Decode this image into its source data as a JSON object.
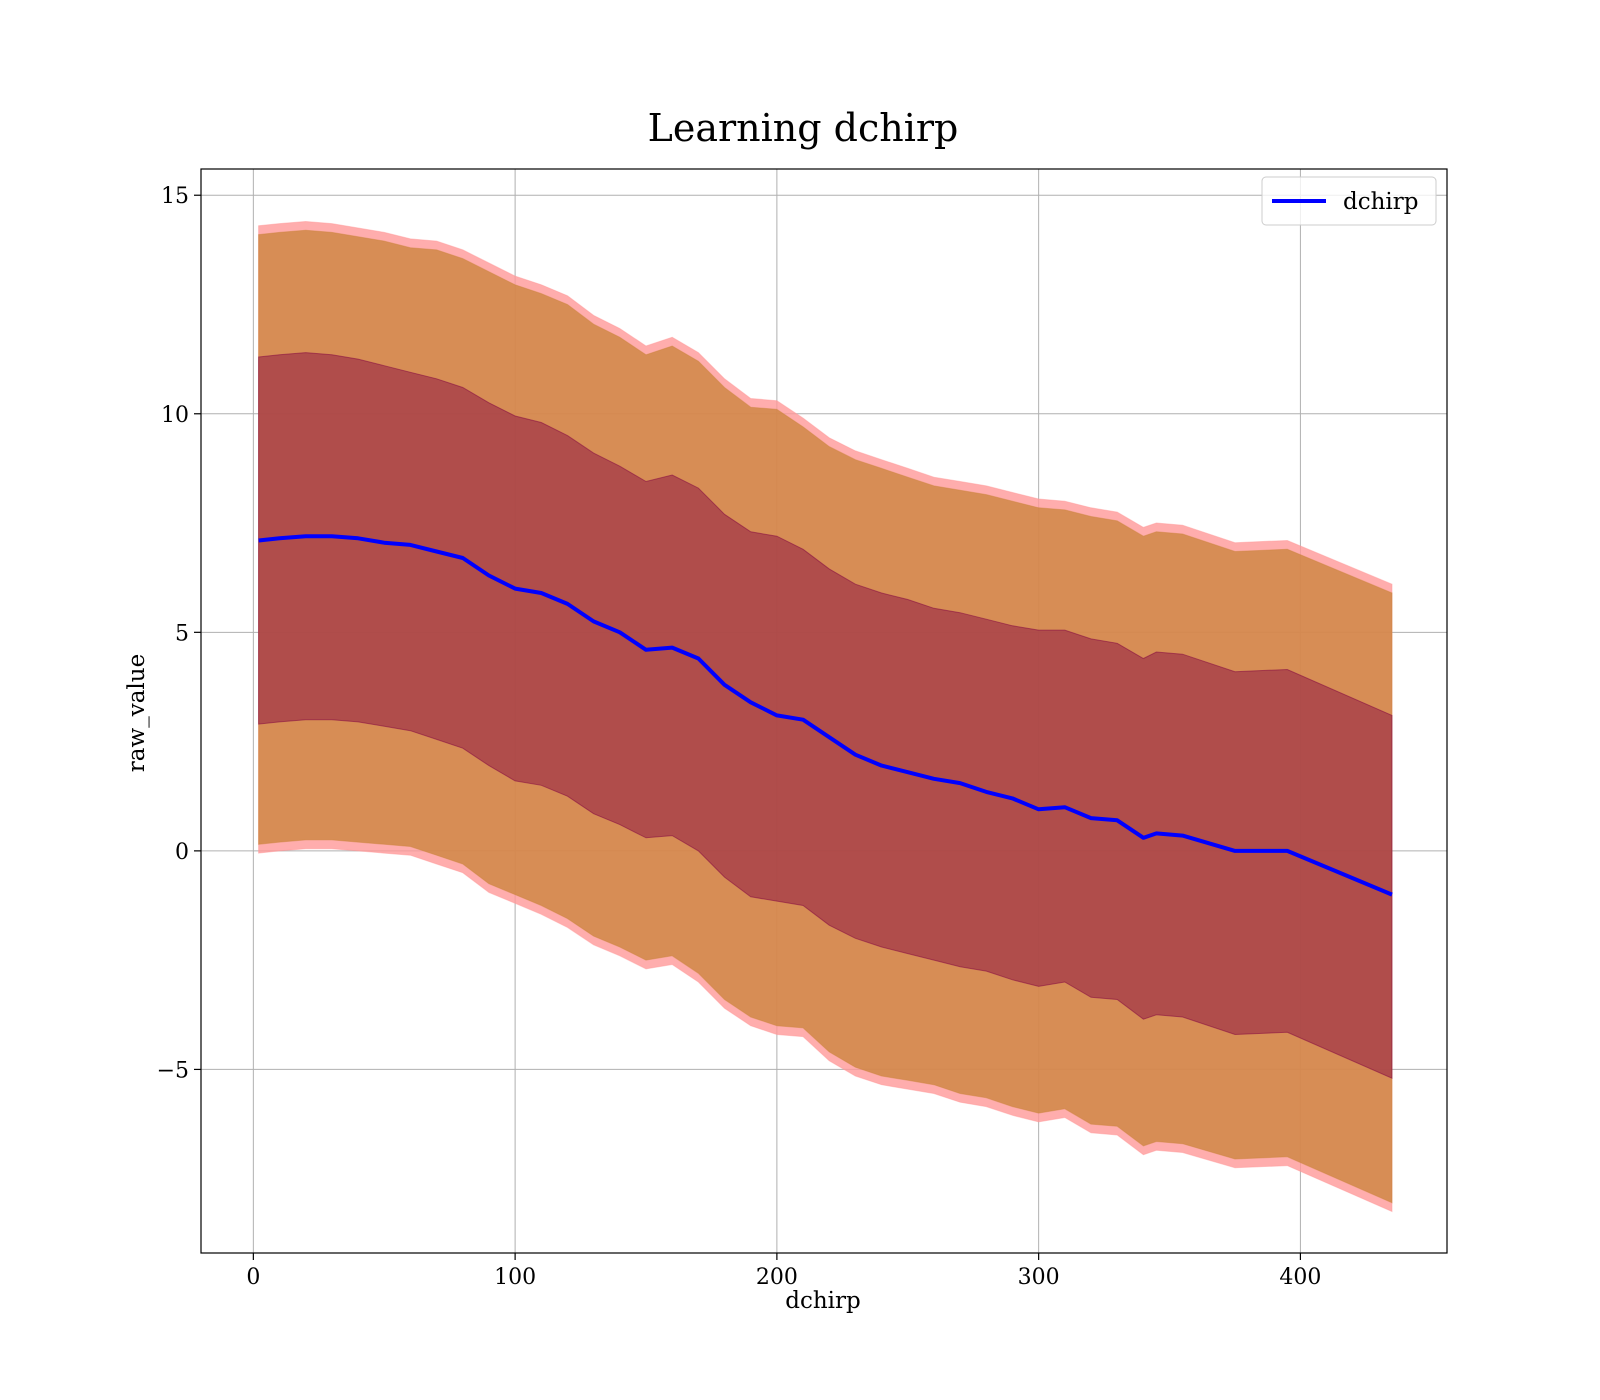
{
  "chart_data": {
    "type": "line",
    "title": "Learning dchirp",
    "xlabel": "dchirp",
    "ylabel": "raw_value",
    "xlim": [
      -20,
      456
    ],
    "ylim": [
      -9.2,
      15.6
    ],
    "xticks": [
      0,
      100,
      200,
      300,
      400
    ],
    "yticks": [
      -5,
      0,
      5,
      10,
      15
    ],
    "xtick_labels": [
      "0",
      "100",
      "200",
      "300",
      "400"
    ],
    "ytick_labels": [
      "−5",
      "0",
      "5",
      "10",
      "15"
    ],
    "grid": true,
    "legend_position": "upper-right",
    "x": [
      2,
      10,
      20,
      30,
      40,
      50,
      60,
      70,
      80,
      90,
      100,
      110,
      120,
      130,
      140,
      150,
      160,
      170,
      180,
      190,
      200,
      210,
      220,
      230,
      240,
      250,
      260,
      270,
      280,
      290,
      300,
      310,
      320,
      330,
      340,
      345,
      355,
      375,
      395,
      435
    ],
    "series": [
      {
        "name": "dchirp",
        "color": "#0000ff",
        "values": [
          7.1,
          7.15,
          7.2,
          7.2,
          7.15,
          7.05,
          7.0,
          6.85,
          6.7,
          6.3,
          6.0,
          5.9,
          5.65,
          5.25,
          5.0,
          4.6,
          4.65,
          4.4,
          3.8,
          3.4,
          3.1,
          3.0,
          2.6,
          2.2,
          1.95,
          1.8,
          1.65,
          1.55,
          1.35,
          1.2,
          0.95,
          1.0,
          0.75,
          0.7,
          0.3,
          0.4,
          0.35,
          0.0,
          0.0,
          -1.0
        ]
      }
    ],
    "bands": [
      {
        "level": "outer",
        "color": "#ff9999",
        "upper": [
          14.3,
          14.35,
          14.4,
          14.35,
          14.25,
          14.15,
          14.0,
          13.95,
          13.75,
          13.45,
          13.15,
          12.95,
          12.7,
          12.25,
          11.95,
          11.55,
          11.75,
          11.4,
          10.8,
          10.35,
          10.3,
          9.9,
          9.45,
          9.15,
          8.95,
          8.75,
          8.55,
          8.45,
          8.35,
          8.2,
          8.05,
          8.0,
          7.85,
          7.75,
          7.4,
          7.5,
          7.45,
          7.05,
          7.1,
          6.1
        ],
        "lower": [
          -0.05,
          0.0,
          0.05,
          0.05,
          0.0,
          -0.05,
          -0.1,
          -0.3,
          -0.5,
          -0.95,
          -1.2,
          -1.45,
          -1.75,
          -2.15,
          -2.4,
          -2.7,
          -2.6,
          -3.0,
          -3.6,
          -4.0,
          -4.2,
          -4.25,
          -4.8,
          -5.15,
          -5.35,
          -5.45,
          -5.55,
          -5.75,
          -5.85,
          -6.05,
          -6.2,
          -6.1,
          -6.45,
          -6.5,
          -6.95,
          -6.85,
          -6.9,
          -7.25,
          -7.2,
          -8.25
        ]
      },
      {
        "level": "2-sigma",
        "color": "#cd853f",
        "upper": [
          14.1,
          14.15,
          14.2,
          14.15,
          14.05,
          13.95,
          13.8,
          13.75,
          13.55,
          13.25,
          12.95,
          12.75,
          12.5,
          12.05,
          11.75,
          11.35,
          11.55,
          11.2,
          10.6,
          10.15,
          10.1,
          9.7,
          9.25,
          8.95,
          8.75,
          8.55,
          8.35,
          8.25,
          8.15,
          8.0,
          7.85,
          7.8,
          7.65,
          7.55,
          7.2,
          7.3,
          7.25,
          6.85,
          6.9,
          5.9
        ],
        "lower": [
          0.15,
          0.2,
          0.25,
          0.25,
          0.2,
          0.15,
          0.1,
          -0.1,
          -0.3,
          -0.75,
          -1.0,
          -1.25,
          -1.55,
          -1.95,
          -2.2,
          -2.5,
          -2.4,
          -2.8,
          -3.4,
          -3.8,
          -4.0,
          -4.05,
          -4.6,
          -4.95,
          -5.15,
          -5.25,
          -5.35,
          -5.55,
          -5.65,
          -5.85,
          -6.0,
          -5.9,
          -6.25,
          -6.3,
          -6.75,
          -6.65,
          -6.7,
          -7.05,
          -7.0,
          -8.05
        ]
      },
      {
        "level": "1-sigma",
        "color": "#800040",
        "upper": [
          11.3,
          11.35,
          11.4,
          11.35,
          11.25,
          11.1,
          10.95,
          10.8,
          10.6,
          10.25,
          9.95,
          9.8,
          9.5,
          9.1,
          8.8,
          8.45,
          8.6,
          8.3,
          7.7,
          7.3,
          7.2,
          6.9,
          6.45,
          6.1,
          5.9,
          5.75,
          5.55,
          5.45,
          5.3,
          5.15,
          5.05,
          5.05,
          4.85,
          4.75,
          4.4,
          4.55,
          4.5,
          4.1,
          4.15,
          3.1
        ],
        "lower": [
          2.9,
          2.95,
          3.0,
          3.0,
          2.95,
          2.85,
          2.75,
          2.55,
          2.35,
          1.95,
          1.6,
          1.5,
          1.25,
          0.85,
          0.6,
          0.3,
          0.35,
          0.0,
          -0.6,
          -1.05,
          -1.15,
          -1.25,
          -1.7,
          -2.0,
          -2.2,
          -2.35,
          -2.5,
          -2.65,
          -2.75,
          -2.95,
          -3.1,
          -3.0,
          -3.35,
          -3.4,
          -3.85,
          -3.75,
          -3.8,
          -4.2,
          -4.15,
          -5.2
        ]
      }
    ]
  }
}
